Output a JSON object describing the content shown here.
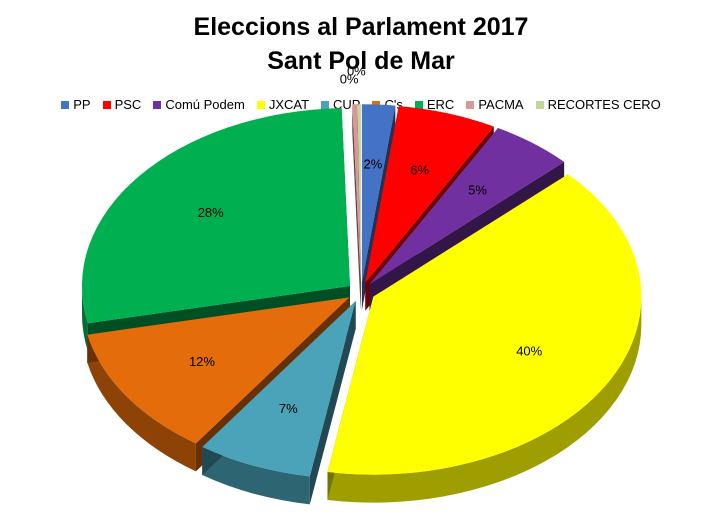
{
  "chart_data": {
    "type": "pie",
    "title": "Eleccions al Parlament 2017",
    "subtitle": "Sant Pol de Mar",
    "legend_position": "top",
    "exploded": true,
    "style": "3d",
    "slices": [
      {
        "name": "PP",
        "value": 2,
        "label": "2%",
        "color": "#4472c4"
      },
      {
        "name": "PSC",
        "value": 6,
        "label": "6%",
        "color": "#ff0000"
      },
      {
        "name": "Comú Podem",
        "value": 5,
        "label": "5%",
        "color": "#7030a0"
      },
      {
        "name": "JXCAT",
        "value": 40,
        "label": "40%",
        "color": "#ffff00"
      },
      {
        "name": "CUP",
        "value": 7,
        "label": "7%",
        "color": "#4aa3b8"
      },
      {
        "name": "C's",
        "value": 12,
        "label": "12%",
        "color": "#e46c0a"
      },
      {
        "name": "ERC",
        "value": 28,
        "label": "28%",
        "color": "#00b050"
      },
      {
        "name": "PACMA",
        "value": 0.3,
        "label": "0%",
        "color": "#d99795"
      },
      {
        "name": "RECORTES CERO",
        "value": 0.2,
        "label": "0%",
        "color": "#c4d79b"
      }
    ]
  }
}
